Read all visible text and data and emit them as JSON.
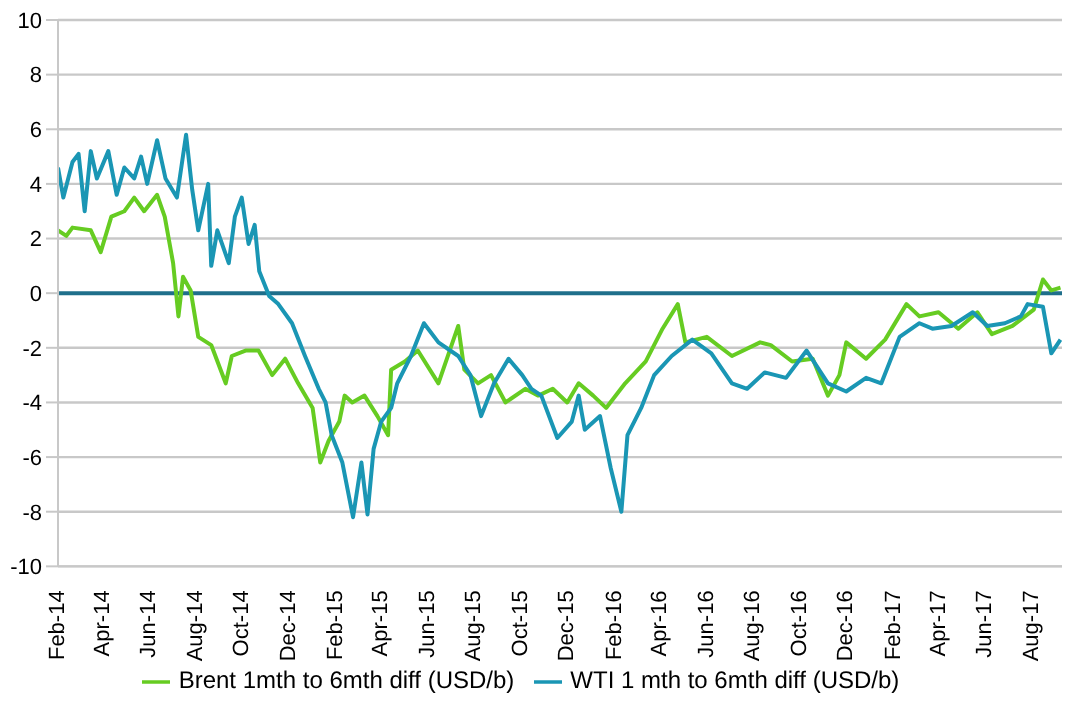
{
  "chart_data": {
    "type": "line",
    "xlim": [
      "2014-02-01",
      "2017-09-10"
    ],
    "xticks": [
      {
        "value": "2014-02-01",
        "label": "Feb-14"
      },
      {
        "value": "2014-04-01",
        "label": "Apr-14"
      },
      {
        "value": "2014-06-01",
        "label": "Jun-14"
      },
      {
        "value": "2014-08-01",
        "label": "Aug-14"
      },
      {
        "value": "2014-10-01",
        "label": "Oct-14"
      },
      {
        "value": "2014-12-01",
        "label": "Dec-14"
      },
      {
        "value": "2015-02-01",
        "label": "Feb-15"
      },
      {
        "value": "2015-04-01",
        "label": "Apr-15"
      },
      {
        "value": "2015-06-01",
        "label": "Jun-15"
      },
      {
        "value": "2015-08-01",
        "label": "Aug-15"
      },
      {
        "value": "2015-10-01",
        "label": "Oct-15"
      },
      {
        "value": "2015-12-01",
        "label": "Dec-15"
      },
      {
        "value": "2016-02-01",
        "label": "Feb-16"
      },
      {
        "value": "2016-04-01",
        "label": "Apr-16"
      },
      {
        "value": "2016-06-01",
        "label": "Jun-16"
      },
      {
        "value": "2016-08-01",
        "label": "Aug-16"
      },
      {
        "value": "2016-10-01",
        "label": "Oct-16"
      },
      {
        "value": "2016-12-01",
        "label": "Dec-16"
      },
      {
        "value": "2017-02-01",
        "label": "Feb-17"
      },
      {
        "value": "2017-04-01",
        "label": "Apr-17"
      },
      {
        "value": "2017-06-01",
        "label": "Jun-17"
      },
      {
        "value": "2017-08-01",
        "label": "Aug-17"
      }
    ],
    "ylim": [
      -10,
      10
    ],
    "yticks": [
      -10,
      -8,
      -6,
      -4,
      -2,
      0,
      2,
      4,
      6,
      8,
      10
    ],
    "grid": "y",
    "legend": "bottom",
    "marker": "none",
    "line_style": "solid",
    "ref_lines": [
      {
        "axis": "y",
        "value": 0,
        "color": "#1f6f8b"
      }
    ],
    "series": [
      {
        "name": "Brent 1mth to 6mth diff (USD/b)",
        "color": "#66cc22",
        "x": [
          "2014-02-01",
          "2014-02-12",
          "2014-02-20",
          "2014-03-16",
          "2014-03-29",
          "2014-04-12",
          "2014-04-29",
          "2014-05-12",
          "2014-05-25",
          "2014-06-11",
          "2014-06-21",
          "2014-07-02",
          "2014-07-09",
          "2014-07-15",
          "2014-07-25",
          "2014-08-04",
          "2014-08-21",
          "2014-09-09",
          "2014-09-17",
          "2014-10-05",
          "2014-10-22",
          "2014-11-09",
          "2014-11-26",
          "2014-12-13",
          "2015-01-01",
          "2015-01-11",
          "2015-01-22",
          "2015-02-05",
          "2015-02-12",
          "2015-02-22",
          "2015-03-10",
          "2015-03-27",
          "2015-04-10",
          "2015-04-14",
          "2015-05-02",
          "2015-05-19",
          "2015-06-15",
          "2015-07-11",
          "2015-07-19",
          "2015-08-06",
          "2015-08-23",
          "2015-09-11",
          "2015-10-07",
          "2015-10-24",
          "2015-11-12",
          "2015-12-01",
          "2015-12-16",
          "2016-01-04",
          "2016-01-21",
          "2016-02-15",
          "2016-03-13",
          "2016-04-04",
          "2016-04-24",
          "2016-05-04",
          "2016-06-01",
          "2016-07-04",
          "2016-08-10",
          "2016-08-24",
          "2016-09-21",
          "2016-10-18",
          "2016-11-07",
          "2016-11-22",
          "2016-12-01",
          "2016-12-27",
          "2017-01-21",
          "2017-02-18",
          "2017-03-07",
          "2017-04-01",
          "2017-04-27",
          "2017-05-22",
          "2017-06-10",
          "2017-07-07",
          "2017-08-04",
          "2017-08-16",
          "2017-08-27",
          "2017-09-08"
        ],
        "values": [
          2.3,
          2.1,
          2.4,
          2.3,
          1.5,
          2.8,
          3.0,
          3.5,
          3.0,
          3.6,
          2.8,
          1.1,
          -0.85,
          0.6,
          0.1,
          -1.6,
          -1.9,
          -3.3,
          -2.3,
          -2.1,
          -2.1,
          -3.0,
          -2.4,
          -3.3,
          -4.2,
          -6.2,
          -5.4,
          -4.7,
          -3.75,
          -4.0,
          -3.75,
          -4.5,
          -5.2,
          -2.8,
          -2.5,
          -2.1,
          -3.3,
          -1.2,
          -2.8,
          -3.3,
          -3.0,
          -4.0,
          -3.5,
          -3.75,
          -3.5,
          -4.0,
          -3.3,
          -3.75,
          -4.2,
          -3.3,
          -2.5,
          -1.3,
          -0.4,
          -1.8,
          -1.6,
          -2.3,
          -1.8,
          -1.9,
          -2.5,
          -2.4,
          -3.75,
          -3.0,
          -1.8,
          -2.4,
          -1.7,
          -0.4,
          -0.85,
          -0.7,
          -1.3,
          -0.7,
          -1.5,
          -1.2,
          -0.6,
          0.5,
          0.1,
          0.2
        ]
      },
      {
        "name": "WTI 1 mth to 6mth diff (USD/b)",
        "color": "#1a96b4",
        "x": [
          "2014-02-01",
          "2014-02-08",
          "2014-02-20",
          "2014-02-28",
          "2014-03-08",
          "2014-03-16",
          "2014-03-24",
          "2014-04-08",
          "2014-04-19",
          "2014-04-29",
          "2014-05-12",
          "2014-05-21",
          "2014-05-29",
          "2014-06-11",
          "2014-06-22",
          "2014-07-07",
          "2014-07-19",
          "2014-07-27",
          "2014-08-04",
          "2014-08-17",
          "2014-08-21",
          "2014-08-29",
          "2014-09-13",
          "2014-09-21",
          "2014-09-30",
          "2014-10-09",
          "2014-10-17",
          "2014-10-23",
          "2014-11-05",
          "2014-11-17",
          "2014-12-05",
          "2014-12-22",
          "2015-01-09",
          "2015-01-18",
          "2015-01-26",
          "2015-02-09",
          "2015-02-23",
          "2015-03-06",
          "2015-03-14",
          "2015-03-22",
          "2015-04-01",
          "2015-04-14",
          "2015-04-22",
          "2015-05-10",
          "2015-05-27",
          "2015-06-15",
          "2015-07-11",
          "2015-07-27",
          "2015-08-10",
          "2015-08-27",
          "2015-09-15",
          "2015-10-03",
          "2015-10-15",
          "2015-10-28",
          "2015-11-18",
          "2015-12-07",
          "2015-12-16",
          "2015-12-24",
          "2016-01-13",
          "2016-01-27",
          "2016-02-10",
          "2016-02-18",
          "2016-03-07",
          "2016-03-24",
          "2016-04-16",
          "2016-05-13",
          "2016-06-07",
          "2016-07-04",
          "2016-07-24",
          "2016-08-16",
          "2016-09-13",
          "2016-10-10",
          "2016-11-07",
          "2016-12-01",
          "2016-12-27",
          "2017-01-16",
          "2017-02-09",
          "2017-03-07",
          "2017-03-24",
          "2017-04-18",
          "2017-05-16",
          "2017-06-04",
          "2017-06-27",
          "2017-07-18",
          "2017-07-27",
          "2017-08-16",
          "2017-08-27",
          "2017-09-08"
        ],
        "values": [
          4.6,
          3.5,
          4.8,
          5.1,
          3.0,
          5.2,
          4.2,
          5.2,
          3.6,
          4.6,
          4.2,
          5.0,
          4.0,
          5.6,
          4.2,
          3.5,
          5.8,
          3.8,
          2.3,
          4.0,
          1.0,
          2.3,
          1.1,
          2.8,
          3.5,
          1.8,
          2.5,
          0.8,
          -0.1,
          -0.4,
          -1.1,
          -2.3,
          -3.5,
          -4.0,
          -5.2,
          -6.2,
          -8.2,
          -6.2,
          -8.1,
          -5.7,
          -4.7,
          -4.2,
          -3.3,
          -2.3,
          -1.1,
          -1.8,
          -2.3,
          -3.0,
          -4.5,
          -3.3,
          -2.4,
          -3.0,
          -3.5,
          -3.75,
          -5.3,
          -4.7,
          -3.75,
          -5.0,
          -4.5,
          -6.4,
          -8.0,
          -5.2,
          -4.2,
          -3.0,
          -2.3,
          -1.7,
          -2.2,
          -3.3,
          -3.5,
          -2.9,
          -3.1,
          -2.1,
          -3.3,
          -3.6,
          -3.1,
          -3.3,
          -1.6,
          -1.1,
          -1.3,
          -1.2,
          -0.7,
          -1.2,
          -1.1,
          -0.85,
          -0.4,
          -0.5,
          -2.2,
          -1.7
        ]
      }
    ]
  }
}
